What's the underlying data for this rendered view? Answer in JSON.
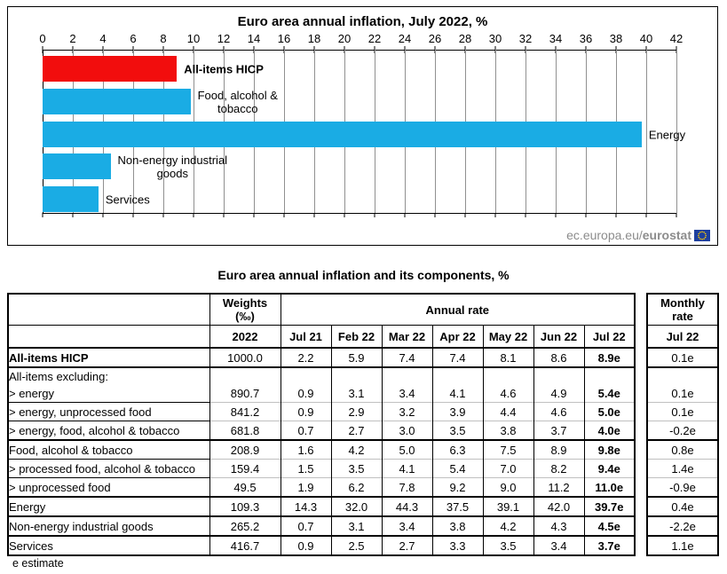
{
  "chart_data": [
    {
      "type": "bar",
      "orientation": "horizontal",
      "title": "Euro area annual inflation, July 2022, %",
      "categories": [
        "All-items HICP",
        "Food, alcohol & tobacco",
        "Energy",
        "Non-energy industrial goods",
        "Services"
      ],
      "values": [
        8.9,
        9.8,
        39.7,
        4.5,
        3.7
      ],
      "colors": [
        "#f20d0d",
        "#1aace4",
        "#1aace4",
        "#1aace4",
        "#1aace4"
      ],
      "label_lines": [
        [
          "All-items HICP"
        ],
        [
          "Food, alcohol &",
          "tobacco"
        ],
        [
          "Energy"
        ],
        [
          "Non-energy industrial",
          "goods"
        ],
        [
          "Services"
        ]
      ],
      "bold_labels": [
        true,
        false,
        false,
        false,
        false
      ],
      "xlabel": "",
      "xlim": [
        0,
        42
      ],
      "xtick_step": 2,
      "grid": true,
      "gridline_color": "#909090",
      "watermark": {
        "text": "ec.europa.eu/",
        "bold_text": "eurostat"
      }
    },
    {
      "type": "table",
      "title": "Euro area annual inflation and its components, %",
      "header": {
        "weights_label": "Weights",
        "weights_unit": "(‰)",
        "weights_year": "2022",
        "annual_rate_label": "Annual rate",
        "months": [
          "Jul 21",
          "Feb 22",
          "Mar 22",
          "Apr 22",
          "May 22",
          "Jun 22",
          "Jul 22"
        ],
        "monthly_rate_line1": "Monthly",
        "monthly_rate_line2": "rate",
        "monthly_month": "Jul 22"
      },
      "rows": [
        {
          "label": "All-items HICP",
          "bold": true,
          "weight": "1000.0",
          "values": [
            "2.2",
            "5.9",
            "7.4",
            "7.4",
            "8.1",
            "8.6",
            "8.9e"
          ],
          "monthly": "0.1e",
          "sep": "none"
        },
        {
          "label": "All-items excluding:",
          "bold": false,
          "weight": "",
          "values": [
            "",
            "",
            "",
            "",
            "",
            "",
            ""
          ],
          "monthly": "",
          "sep": "thick",
          "compact": true
        },
        {
          "label": "> energy",
          "bold": false,
          "weight": "890.7",
          "values": [
            "0.9",
            "3.1",
            "3.4",
            "4.1",
            "4.6",
            "4.9",
            "5.4e"
          ],
          "monthly": "0.1e",
          "sep": "none"
        },
        {
          "label": "> energy, unprocessed food",
          "bold": false,
          "weight": "841.2",
          "values": [
            "0.9",
            "2.9",
            "3.2",
            "3.9",
            "4.4",
            "4.6",
            "5.0e"
          ],
          "monthly": "0.1e",
          "sep": "gray"
        },
        {
          "label": "> energy, food, alcohol & tobacco",
          "bold": false,
          "weight": "681.8",
          "values": [
            "0.7",
            "2.7",
            "3.0",
            "3.5",
            "3.8",
            "3.7",
            "4.0e"
          ],
          "monthly": "-0.2e",
          "sep": "gray"
        },
        {
          "label": "Food, alcohol & tobacco",
          "bold": false,
          "weight": "208.9",
          "values": [
            "1.6",
            "4.2",
            "5.0",
            "6.3",
            "7.5",
            "8.9",
            "9.8e"
          ],
          "monthly": "0.8e",
          "sep": "thick"
        },
        {
          "label": "> processed food, alcohol & tobacco",
          "bold": false,
          "weight": "159.4",
          "values": [
            "1.5",
            "3.5",
            "4.1",
            "5.4",
            "7.0",
            "8.2",
            "9.4e"
          ],
          "monthly": "1.4e",
          "sep": "gray"
        },
        {
          "label": "> unprocessed food",
          "bold": false,
          "weight": "49.5",
          "values": [
            "1.9",
            "6.2",
            "7.8",
            "9.2",
            "9.0",
            "11.2",
            "11.0e"
          ],
          "monthly": "-0.9e",
          "sep": "gray"
        },
        {
          "label": "Energy",
          "bold": false,
          "weight": "109.3",
          "values": [
            "14.3",
            "32.0",
            "44.3",
            "37.5",
            "39.1",
            "42.0",
            "39.7e"
          ],
          "monthly": "0.4e",
          "sep": "thick"
        },
        {
          "label": "Non-energy industrial goods",
          "bold": false,
          "weight": "265.2",
          "values": [
            "0.7",
            "3.1",
            "3.4",
            "3.8",
            "4.2",
            "4.3",
            "4.5e"
          ],
          "monthly": "-2.2e",
          "sep": "thick"
        },
        {
          "label": "Services",
          "bold": false,
          "weight": "416.7",
          "values": [
            "0.9",
            "2.5",
            "2.7",
            "3.3",
            "3.5",
            "3.4",
            "3.7e"
          ],
          "monthly": "1.1e",
          "sep": "thick"
        }
      ],
      "footnote": "e estimate"
    }
  ]
}
